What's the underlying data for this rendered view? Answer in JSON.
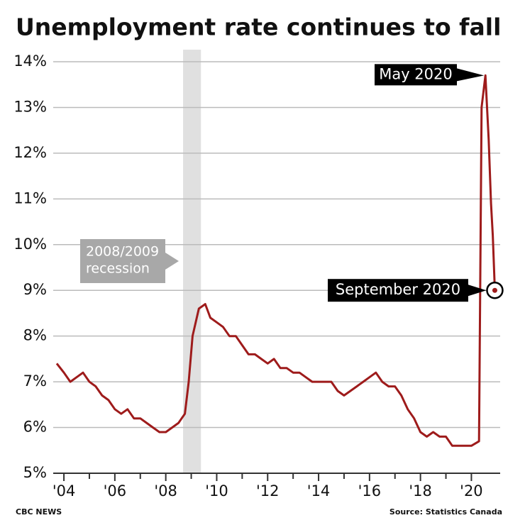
{
  "chart_data": {
    "type": "line",
    "title": "Unemployment rate continues to fall",
    "x": [
      2003.72,
      2004.0,
      2004.25,
      2004.5,
      2004.75,
      2005.0,
      2005.25,
      2005.5,
      2005.75,
      2006.0,
      2006.25,
      2006.5,
      2006.75,
      2007.0,
      2007.25,
      2007.5,
      2007.75,
      2008.0,
      2008.25,
      2008.5,
      2008.75,
      2008.9,
      2009.05,
      2009.3,
      2009.55,
      2009.75,
      2010.0,
      2010.25,
      2010.5,
      2010.75,
      2011.0,
      2011.25,
      2011.5,
      2011.75,
      2012.0,
      2012.25,
      2012.5,
      2012.75,
      2013.0,
      2013.25,
      2013.5,
      2013.75,
      2014.0,
      2014.25,
      2014.5,
      2014.75,
      2015.0,
      2015.25,
      2015.5,
      2015.75,
      2016.0,
      2016.25,
      2016.5,
      2016.75,
      2017.0,
      2017.25,
      2017.5,
      2017.75,
      2018.0,
      2018.25,
      2018.5,
      2018.75,
      2019.0,
      2019.25,
      2019.5,
      2019.75,
      2020.0,
      2020.3,
      2020.4,
      2020.55,
      2020.68,
      2020.77,
      2020.84,
      2020.92
    ],
    "series": [
      {
        "color": "#9e1b1b",
        "values": [
          7.4,
          7.2,
          7.0,
          7.1,
          7.2,
          7.0,
          6.9,
          6.7,
          6.6,
          6.4,
          6.3,
          6.4,
          6.2,
          6.2,
          6.1,
          6.0,
          5.9,
          5.9,
          6.0,
          6.1,
          6.3,
          7.0,
          8.0,
          8.6,
          8.7,
          8.4,
          8.3,
          8.2,
          8.0,
          8.0,
          7.8,
          7.6,
          7.6,
          7.5,
          7.4,
          7.5,
          7.3,
          7.3,
          7.2,
          7.2,
          7.1,
          7.0,
          7.0,
          7.0,
          7.0,
          6.8,
          6.7,
          6.8,
          6.9,
          7.0,
          7.1,
          7.2,
          7.0,
          6.9,
          6.9,
          6.7,
          6.4,
          6.2,
          5.9,
          5.8,
          5.9,
          5.8,
          5.8,
          5.6,
          5.6,
          5.6,
          5.6,
          5.7,
          13.0,
          13.7,
          12.3,
          10.9,
          10.2,
          9.0
        ]
      }
    ],
    "xlim": [
      2003.58,
      2021.13
    ],
    "ylim": [
      5,
      14
    ],
    "xticks": [
      {
        "value": 2004,
        "label": "'04"
      },
      {
        "value": 2006,
        "label": "'06"
      },
      {
        "value": 2008,
        "label": "'08"
      },
      {
        "value": 2010,
        "label": "'10"
      },
      {
        "value": 2012,
        "label": "'12"
      },
      {
        "value": 2014,
        "label": "'14"
      },
      {
        "value": 2016,
        "label": "'16"
      },
      {
        "value": 2018,
        "label": "'18"
      },
      {
        "value": 2020,
        "label": "'20"
      }
    ],
    "xminor_ticks": [
      2005,
      2007,
      2009,
      2011,
      2013,
      2015,
      2017,
      2019
    ],
    "yticks": [
      {
        "value": 5,
        "label": "5%"
      },
      {
        "value": 6,
        "label": "6%"
      },
      {
        "value": 7,
        "label": "7%"
      },
      {
        "value": 8,
        "label": "8%"
      },
      {
        "value": 9,
        "label": "9%"
      },
      {
        "value": 10,
        "label": "10%"
      },
      {
        "value": 11,
        "label": "11%"
      },
      {
        "value": 12,
        "label": "12%"
      },
      {
        "value": 13,
        "label": "13%"
      },
      {
        "value": 14,
        "label": "14%"
      }
    ],
    "grid": true,
    "recession_band": [
      2008.68,
      2009.38
    ],
    "recession_label": [
      "2008/2009",
      "recession"
    ],
    "peak_label": "May 2020",
    "last_label": "September 2020",
    "credit": "CBC NEWS",
    "source": "Source: Statistics Canada"
  }
}
